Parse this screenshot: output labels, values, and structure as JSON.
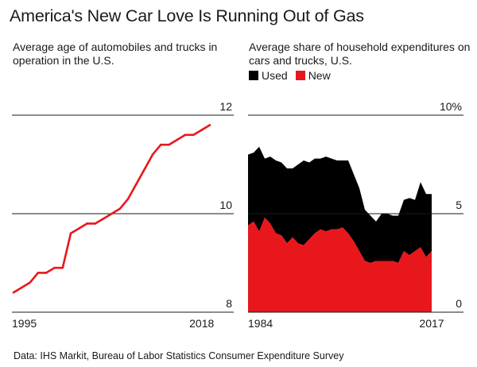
{
  "title": "America's New Car Love Is Running Out of Gas",
  "footer": "Data: IHS Markit, Bureau of Labor Statistics Consumer Expenditure Survey",
  "colors": {
    "line": "#e8171c",
    "used": "#000000",
    "new": "#e8171c",
    "grid": "#1a1a1a"
  },
  "chart_data": [
    {
      "type": "line",
      "title": "Average age of automobiles and trucks in operation in the U.S.",
      "xlabel": "",
      "ylabel": "",
      "x": [
        1995,
        1996,
        1997,
        1998,
        1999,
        2000,
        2001,
        2002,
        2003,
        2004,
        2005,
        2006,
        2007,
        2008,
        2009,
        2010,
        2011,
        2012,
        2013,
        2014,
        2015,
        2016,
        2017,
        2018,
        2019
      ],
      "y": [
        8.4,
        8.5,
        8.6,
        8.8,
        8.8,
        8.9,
        8.9,
        9.6,
        9.7,
        9.8,
        9.8,
        9.9,
        10.0,
        10.1,
        10.3,
        10.6,
        10.9,
        11.2,
        11.4,
        11.4,
        11.5,
        11.6,
        11.6,
        11.7,
        11.8
      ],
      "ylim": [
        8,
        12
      ],
      "yticks": [
        {
          "value": 12,
          "label": "12"
        },
        {
          "value": 10,
          "label": "10"
        },
        {
          "value": 8,
          "label": "8"
        }
      ],
      "xtick_labels": [
        {
          "value": 1995,
          "label": "1995"
        },
        {
          "value": 2018,
          "label": "2018"
        }
      ]
    },
    {
      "type": "area",
      "title": "Average share of household expenditures on cars and trucks, U.S.",
      "legend": [
        {
          "name": "Used",
          "color": "#000000"
        },
        {
          "name": "New",
          "color": "#e8171c"
        }
      ],
      "x": [
        1984,
        1985,
        1986,
        1987,
        1988,
        1989,
        1990,
        1991,
        1992,
        1993,
        1994,
        1995,
        1996,
        1997,
        1998,
        1999,
        2000,
        2001,
        2002,
        2003,
        2004,
        2005,
        2006,
        2007,
        2008,
        2009,
        2010,
        2011,
        2012,
        2013,
        2014,
        2015,
        2016,
        2017
      ],
      "series": [
        {
          "name": "New",
          "values": [
            4.4,
            4.6,
            4.1,
            4.8,
            4.5,
            4.0,
            3.9,
            3.5,
            3.8,
            3.5,
            3.4,
            3.7,
            4.0,
            4.2,
            4.1,
            4.2,
            4.2,
            4.3,
            4.0,
            3.6,
            3.1,
            2.6,
            2.5,
            2.6,
            2.6,
            2.6,
            2.6,
            2.5,
            3.1,
            2.9,
            3.1,
            3.3,
            2.8,
            3.1
          ]
        },
        {
          "name": "Used",
          "values": [
            3.6,
            3.5,
            4.3,
            3.0,
            3.4,
            3.7,
            3.7,
            3.8,
            3.5,
            4.0,
            4.3,
            3.9,
            3.8,
            3.6,
            3.8,
            3.6,
            3.5,
            3.4,
            3.7,
            3.4,
            3.2,
            2.6,
            2.4,
            2.0,
            2.4,
            2.4,
            2.3,
            2.4,
            2.6,
            2.9,
            2.6,
            3.3,
            3.2,
            2.9
          ]
        }
      ],
      "ylim": [
        0,
        10
      ],
      "yticks": [
        {
          "value": 10,
          "label": "10%"
        },
        {
          "value": 5,
          "label": "5"
        },
        {
          "value": 0,
          "label": "0"
        }
      ],
      "xtick_labels": [
        {
          "value": 1984,
          "label": "1984"
        },
        {
          "value": 2017,
          "label": "2017"
        }
      ]
    }
  ]
}
